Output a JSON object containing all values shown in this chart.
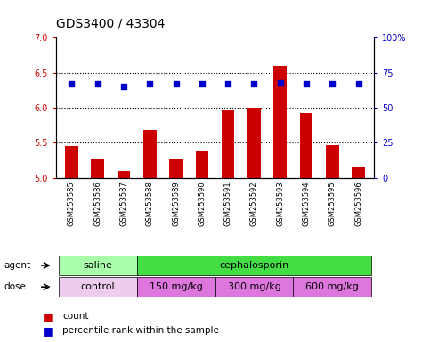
{
  "title": "GDS3400 / 43304",
  "samples": [
    "GSM253585",
    "GSM253586",
    "GSM253587",
    "GSM253588",
    "GSM253589",
    "GSM253590",
    "GSM253591",
    "GSM253592",
    "GSM253593",
    "GSM253594",
    "GSM253595",
    "GSM253596"
  ],
  "bar_values": [
    5.45,
    5.28,
    5.1,
    5.68,
    5.28,
    5.38,
    5.98,
    6.0,
    6.6,
    5.92,
    5.46,
    5.16
  ],
  "percentile_values": [
    67,
    67,
    65,
    67,
    67,
    67,
    67,
    67,
    68,
    67,
    67,
    67
  ],
  "bar_color": "#cc0000",
  "dot_color": "#0000cc",
  "ylim_left": [
    5.0,
    7.0
  ],
  "ylim_right": [
    0,
    100
  ],
  "yticks_left": [
    5.0,
    5.5,
    6.0,
    6.5,
    7.0
  ],
  "yticks_right": [
    0,
    25,
    50,
    75,
    100
  ],
  "yticklabels_right": [
    "0",
    "25",
    "50",
    "75",
    "100%"
  ],
  "dotted_lines": [
    5.5,
    6.0,
    6.5
  ],
  "agent_row": [
    {
      "label": "saline",
      "start": 0,
      "end": 3,
      "color": "#aaffaa"
    },
    {
      "label": "cephalosporin",
      "start": 3,
      "end": 12,
      "color": "#44dd44"
    }
  ],
  "dose_row": [
    {
      "label": "control",
      "start": 0,
      "end": 3,
      "color": "#eeccee"
    },
    {
      "label": "150 mg/kg",
      "start": 3,
      "end": 6,
      "color": "#dd77dd"
    },
    {
      "label": "300 mg/kg",
      "start": 6,
      "end": 9,
      "color": "#dd77dd"
    },
    {
      "label": "600 mg/kg",
      "start": 9,
      "end": 12,
      "color": "#dd77dd"
    }
  ],
  "legend_count_color": "#cc0000",
  "legend_dot_color": "#0000cc",
  "title_fontsize": 10,
  "tick_fontsize": 7,
  "background_color": "#ffffff",
  "plot_bg_color": "#ffffff"
}
